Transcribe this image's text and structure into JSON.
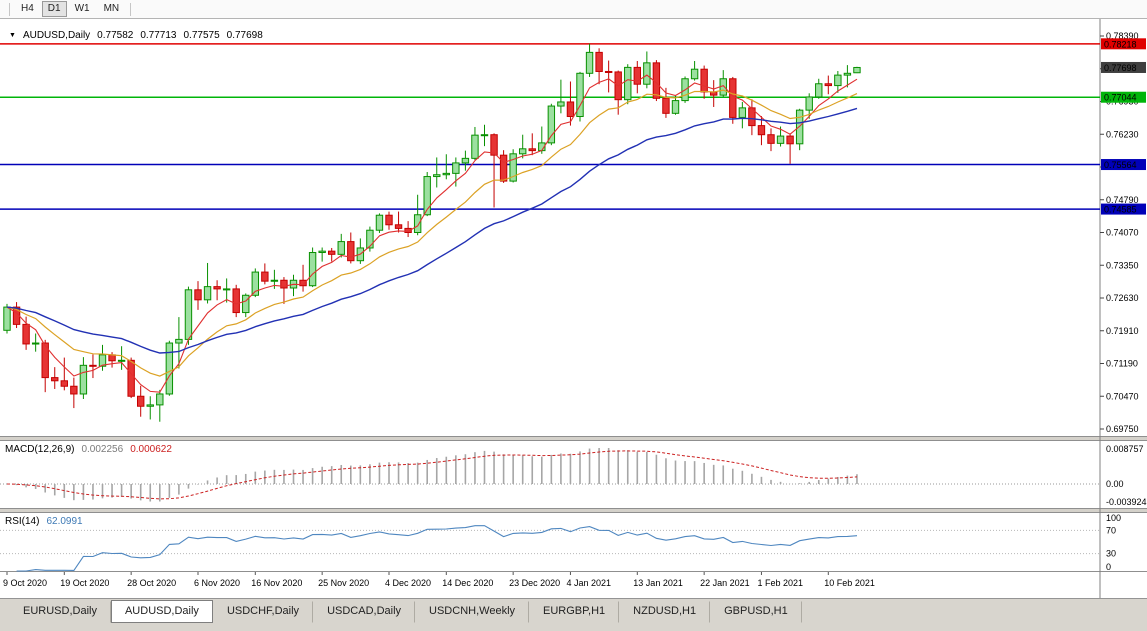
{
  "toolbar": {
    "timeframes": [
      {
        "label": "H4",
        "active": false
      },
      {
        "label": "D1",
        "active": true
      },
      {
        "label": "W1",
        "active": false
      },
      {
        "label": "MN",
        "active": false
      }
    ]
  },
  "header": {
    "dropdown_icon": "▼",
    "symbol": "AUDUSD,Daily",
    "open": "0.77582",
    "high": "0.77713",
    "low": "0.77575",
    "close": "0.77698"
  },
  "price_axis": {
    "ticks": [
      "0.78390",
      "0.77670",
      "0.76950",
      "0.76230",
      "0.75510",
      "0.74790",
      "0.74070",
      "0.73350",
      "0.72630",
      "0.71910",
      "0.71190",
      "0.70470",
      "0.69750"
    ],
    "top_price": 0.7839,
    "step": 0.0072
  },
  "hlines": [
    {
      "price": 0.78218,
      "label": "0.78218",
      "color": "#e00000"
    },
    {
      "price": 0.77044,
      "label": "0.77044",
      "color": "#00b50a"
    },
    {
      "price": 0.75564,
      "label": "0.75564",
      "color": "#0000b8"
    },
    {
      "price": 0.74585,
      "label": "0.74585",
      "color": "#0000b8"
    }
  ],
  "current_price": {
    "value": 0.77698,
    "label": "0.77698",
    "box_color": "#3f3f3f"
  },
  "chart_data": {
    "type": "candlestick",
    "symbol": "AUDUSD",
    "timeframe": "Daily",
    "up_stroke": "#089000",
    "up_fill": "#9ce0a0",
    "down_stroke": "#c40000",
    "down_fill": "#e63434",
    "overlays": [
      {
        "name": "ma-fast",
        "period": 5,
        "color": "#e03030",
        "width": 1.1
      },
      {
        "name": "ma-mid",
        "period": 13,
        "color": "#dca225",
        "width": 1.2
      },
      {
        "name": "ma-slow",
        "period": 30,
        "color": "#2231b4",
        "width": 1.4
      }
    ],
    "candles": [
      [
        0.7192,
        0.725,
        0.7185,
        0.7243
      ],
      [
        0.7243,
        0.7254,
        0.7197,
        0.7205
      ],
      [
        0.7205,
        0.7222,
        0.7149,
        0.7162
      ],
      [
        0.7162,
        0.7185,
        0.7145,
        0.7164
      ],
      [
        0.7164,
        0.7171,
        0.7056,
        0.7088
      ],
      [
        0.7088,
        0.7111,
        0.7063,
        0.7081
      ],
      [
        0.7081,
        0.7132,
        0.706,
        0.7069
      ],
      [
        0.7069,
        0.7088,
        0.7021,
        0.7052
      ],
      [
        0.7052,
        0.7133,
        0.7041,
        0.7115
      ],
      [
        0.7115,
        0.7139,
        0.7087,
        0.7113
      ],
      [
        0.7113,
        0.716,
        0.7103,
        0.7138
      ],
      [
        0.7138,
        0.7144,
        0.711,
        0.7125
      ],
      [
        0.7125,
        0.7157,
        0.7105,
        0.7126
      ],
      [
        0.7126,
        0.7132,
        0.7043,
        0.7047
      ],
      [
        0.7047,
        0.707,
        0.7002,
        0.7025
      ],
      [
        0.7025,
        0.7047,
        0.6996,
        0.7028
      ],
      [
        0.7028,
        0.7061,
        0.6991,
        0.7052
      ],
      [
        0.7052,
        0.7169,
        0.7048,
        0.7164
      ],
      [
        0.7164,
        0.7221,
        0.7108,
        0.7172
      ],
      [
        0.7172,
        0.7288,
        0.716,
        0.7281
      ],
      [
        0.7281,
        0.73,
        0.7237,
        0.7259
      ],
      [
        0.7259,
        0.734,
        0.7251,
        0.7288
      ],
      [
        0.7288,
        0.7302,
        0.7258,
        0.7283
      ],
      [
        0.7283,
        0.7306,
        0.7253,
        0.7283
      ],
      [
        0.7283,
        0.7292,
        0.7221,
        0.7231
      ],
      [
        0.7231,
        0.7273,
        0.7221,
        0.7269
      ],
      [
        0.7269,
        0.7328,
        0.7265,
        0.732
      ],
      [
        0.732,
        0.7339,
        0.7293,
        0.73
      ],
      [
        0.73,
        0.7325,
        0.7283,
        0.7302
      ],
      [
        0.7302,
        0.7309,
        0.725,
        0.7285
      ],
      [
        0.7285,
        0.7314,
        0.7267,
        0.7302
      ],
      [
        0.7302,
        0.7336,
        0.7277,
        0.729
      ],
      [
        0.729,
        0.7374,
        0.7287,
        0.7363
      ],
      [
        0.7363,
        0.7374,
        0.7343,
        0.7366
      ],
      [
        0.7366,
        0.7373,
        0.7343,
        0.7359
      ],
      [
        0.7359,
        0.7404,
        0.7352,
        0.7387
      ],
      [
        0.7387,
        0.7407,
        0.7339,
        0.7345
      ],
      [
        0.7345,
        0.7394,
        0.7338,
        0.7373
      ],
      [
        0.7373,
        0.742,
        0.7365,
        0.7412
      ],
      [
        0.7412,
        0.7449,
        0.7406,
        0.7445
      ],
      [
        0.7445,
        0.7453,
        0.7413,
        0.7424
      ],
      [
        0.7424,
        0.7453,
        0.7407,
        0.7416
      ],
      [
        0.7416,
        0.7432,
        0.7397,
        0.7407
      ],
      [
        0.7407,
        0.749,
        0.7401,
        0.7446
      ],
      [
        0.7446,
        0.754,
        0.7443,
        0.753
      ],
      [
        0.753,
        0.7572,
        0.7506,
        0.7534
      ],
      [
        0.7534,
        0.7579,
        0.7524,
        0.7537
      ],
      [
        0.7537,
        0.7572,
        0.7508,
        0.756
      ],
      [
        0.756,
        0.7587,
        0.7543,
        0.757
      ],
      [
        0.757,
        0.7639,
        0.7566,
        0.7621
      ],
      [
        0.7621,
        0.7644,
        0.7597,
        0.7622
      ],
      [
        0.7622,
        0.7625,
        0.7462,
        0.7577
      ],
      [
        0.7577,
        0.7588,
        0.7516,
        0.752
      ],
      [
        0.752,
        0.759,
        0.7517,
        0.758
      ],
      [
        0.758,
        0.7622,
        0.757,
        0.7591
      ],
      [
        0.7591,
        0.7625,
        0.7577,
        0.7587
      ],
      [
        0.7587,
        0.764,
        0.758,
        0.7604
      ],
      [
        0.7604,
        0.769,
        0.7599,
        0.7685
      ],
      [
        0.7685,
        0.7743,
        0.7669,
        0.7694
      ],
      [
        0.7694,
        0.7739,
        0.7642,
        0.7662
      ],
      [
        0.7662,
        0.776,
        0.7651,
        0.7757
      ],
      [
        0.7757,
        0.7822,
        0.7749,
        0.7803
      ],
      [
        0.7803,
        0.7812,
        0.7733,
        0.7761
      ],
      [
        0.7761,
        0.7785,
        0.7715,
        0.776
      ],
      [
        0.776,
        0.7763,
        0.7666,
        0.7699
      ],
      [
        0.7699,
        0.7777,
        0.7689,
        0.777
      ],
      [
        0.777,
        0.7784,
        0.7713,
        0.7733
      ],
      [
        0.7733,
        0.7805,
        0.7724,
        0.778
      ],
      [
        0.778,
        0.7786,
        0.7696,
        0.7702
      ],
      [
        0.7702,
        0.7725,
        0.7659,
        0.7669
      ],
      [
        0.7669,
        0.7709,
        0.7666,
        0.7697
      ],
      [
        0.7697,
        0.775,
        0.7692,
        0.7745
      ],
      [
        0.7745,
        0.7784,
        0.7741,
        0.7766
      ],
      [
        0.7766,
        0.7774,
        0.7701,
        0.7716
      ],
      [
        0.7716,
        0.7742,
        0.7683,
        0.7709
      ],
      [
        0.7709,
        0.7764,
        0.7705,
        0.7745
      ],
      [
        0.7745,
        0.7749,
        0.7646,
        0.766
      ],
      [
        0.766,
        0.7694,
        0.7636,
        0.7681
      ],
      [
        0.7681,
        0.77,
        0.7621,
        0.7642
      ],
      [
        0.7642,
        0.7663,
        0.7599,
        0.7622
      ],
      [
        0.7622,
        0.7636,
        0.7586,
        0.7603
      ],
      [
        0.7603,
        0.764,
        0.7596,
        0.7619
      ],
      [
        0.7619,
        0.7625,
        0.7558,
        0.7602
      ],
      [
        0.7602,
        0.7679,
        0.7588,
        0.7676
      ],
      [
        0.7676,
        0.7713,
        0.7657,
        0.7705
      ],
      [
        0.7705,
        0.7745,
        0.7701,
        0.7734
      ],
      [
        0.7734,
        0.7752,
        0.7711,
        0.773
      ],
      [
        0.773,
        0.7762,
        0.7714,
        0.7753
      ],
      [
        0.7753,
        0.7775,
        0.7726,
        0.7757
      ],
      [
        0.77582,
        0.77713,
        0.77575,
        0.77698
      ]
    ]
  },
  "macd": {
    "label": "MACD(12,26,9)",
    "value_main": "0.002256",
    "value_signal": "0.000622",
    "fast": 12,
    "slow": 26,
    "signal_period": 9,
    "axis_labels": [
      "0.008757",
      "0.00",
      "-0.003924"
    ],
    "histogram_color": "#a6a6a6",
    "signal_color": "#cc2222"
  },
  "rsi": {
    "label": "RSI(14)",
    "value": "62.0991",
    "period": 14,
    "axis_labels": [
      "100",
      "70",
      "30",
      "0"
    ],
    "levels": [
      70,
      30
    ],
    "line_color": "#4f87c0"
  },
  "date_axis": {
    "labels": [
      {
        "text": "9 Oct 2020",
        "index": 0
      },
      {
        "text": "19 Oct 2020",
        "index": 6
      },
      {
        "text": "28 Oct 2020",
        "index": 13
      },
      {
        "text": "6 Nov 2020",
        "index": 20
      },
      {
        "text": "16 Nov 2020",
        "index": 26
      },
      {
        "text": "25 Nov 2020",
        "index": 33
      },
      {
        "text": "4 Dec 2020",
        "index": 40
      },
      {
        "text": "14 Dec 2020",
        "index": 46
      },
      {
        "text": "23 Dec 2020",
        "index": 53
      },
      {
        "text": "4 Jan 2021",
        "index": 59
      },
      {
        "text": "13 Jan 2021",
        "index": 66
      },
      {
        "text": "22 Jan 2021",
        "index": 73
      },
      {
        "text": "1 Feb 2021",
        "index": 79
      },
      {
        "text": "10 Feb 2021",
        "index": 86
      }
    ]
  },
  "tabs": [
    {
      "label": "EURUSD,Daily",
      "active": false
    },
    {
      "label": "AUDUSD,Daily",
      "active": true
    },
    {
      "label": "USDCHF,Daily",
      "active": false
    },
    {
      "label": "USDCAD,Daily",
      "active": false
    },
    {
      "label": "USDCNH,Weekly",
      "active": false
    },
    {
      "label": "EURGBP,H1",
      "active": false
    },
    {
      "label": "NZDUSD,H1",
      "active": false
    },
    {
      "label": "GBPUSD,H1",
      "active": false
    }
  ]
}
